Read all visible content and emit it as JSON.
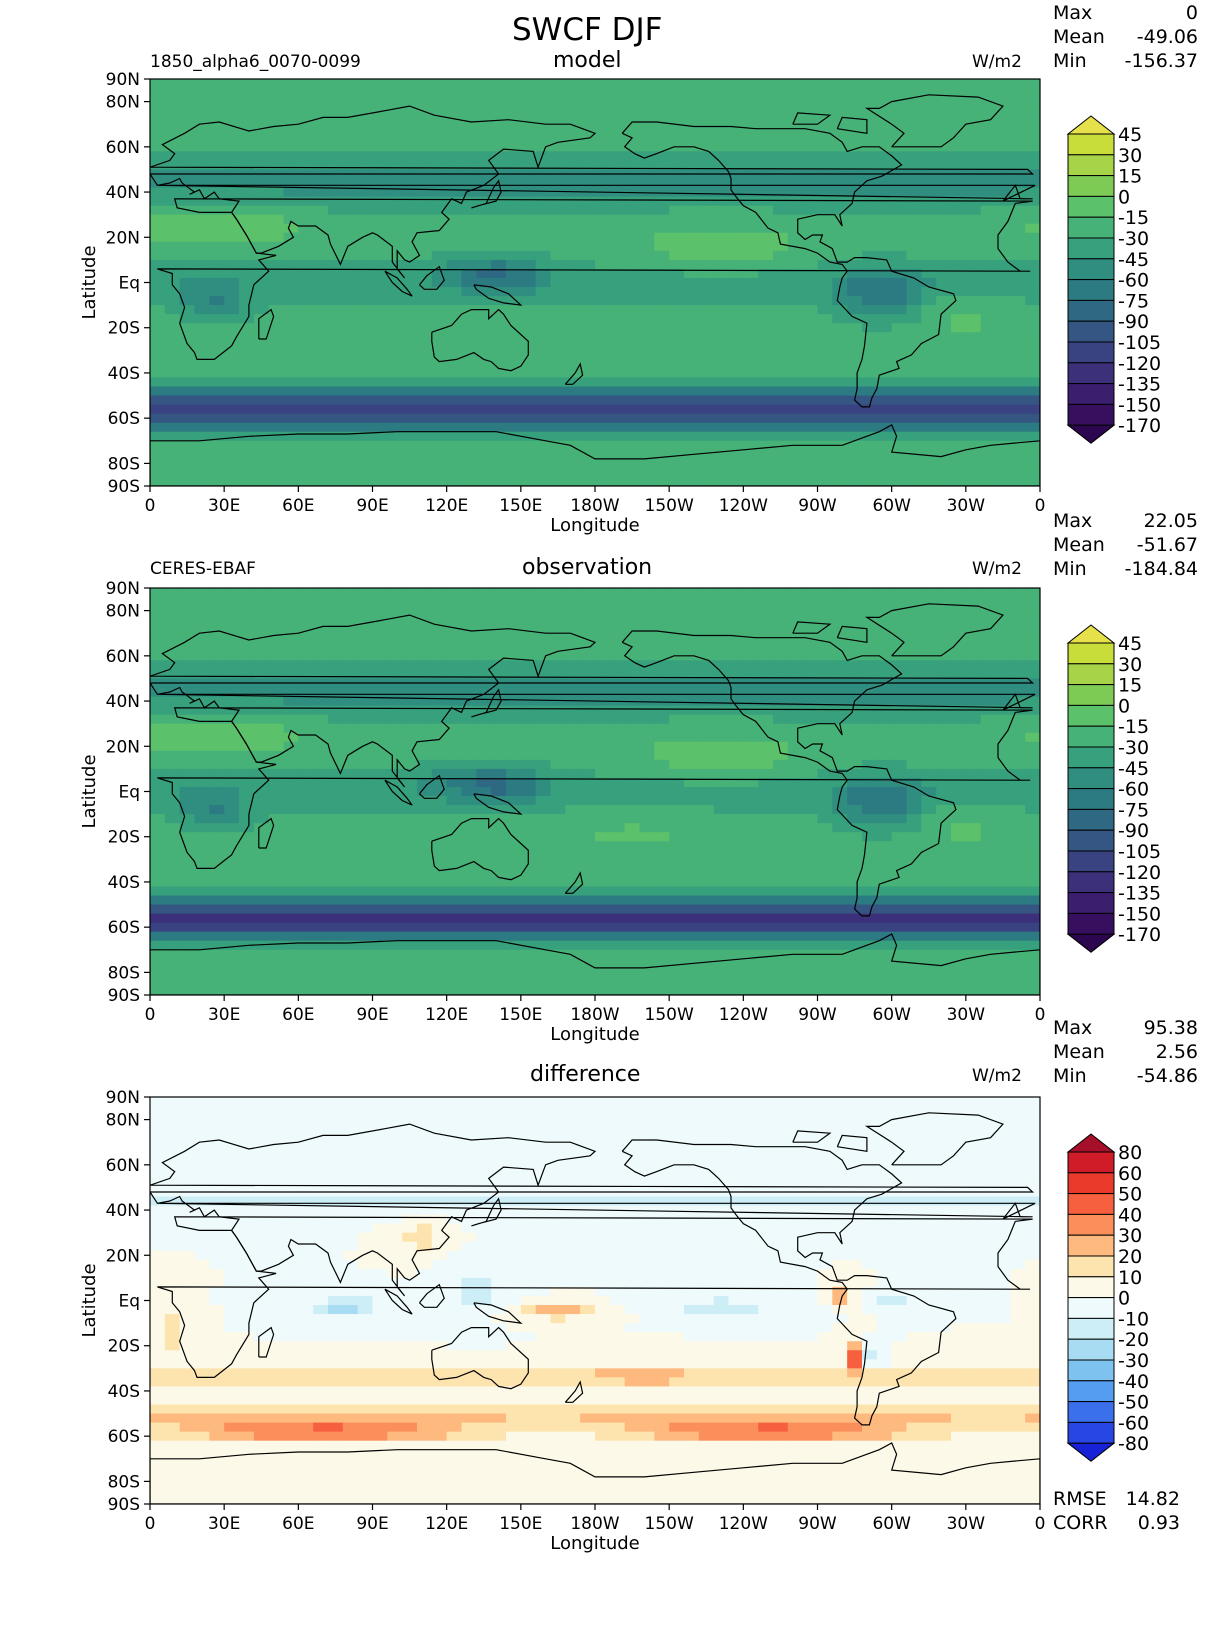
{
  "figure": {
    "title": "SWCF DJF"
  },
  "panels": [
    {
      "id": "model",
      "title": "model",
      "left_label": "1850_alpha6_0070-0099",
      "units": "W/m2",
      "stats": [
        {
          "label": "Max",
          "value": "0"
        },
        {
          "label": "Mean",
          "value": "-49.06"
        },
        {
          "label": "Min",
          "value": "-156.37"
        }
      ],
      "colorbar": {
        "labels": [
          "45",
          "30",
          "15",
          "0",
          "-15",
          "-30",
          "-45",
          "-60",
          "-75",
          "-90",
          "-105",
          "-120",
          "-135",
          "-150",
          "-170"
        ],
        "colors": [
          "#e6e14a",
          "#c9dd3a",
          "#a6d348",
          "#7dca55",
          "#5cc16b",
          "#47b277",
          "#37a07c",
          "#2f8e80",
          "#2d7b82",
          "#2f6883",
          "#355583",
          "#3a4382",
          "#3d307b",
          "#3c1e6f",
          "#36105f",
          "#2d0650"
        ]
      }
    },
    {
      "id": "observation",
      "title": "observation",
      "left_label": "CERES-EBAF",
      "units": "W/m2",
      "stats": [
        {
          "label": "Max",
          "value": "22.05"
        },
        {
          "label": "Mean",
          "value": "-51.67"
        },
        {
          "label": "Min",
          "value": "-184.84"
        }
      ],
      "colorbar": {
        "labels": [
          "45",
          "30",
          "15",
          "0",
          "-15",
          "-30",
          "-45",
          "-60",
          "-75",
          "-90",
          "-105",
          "-120",
          "-135",
          "-150",
          "-170"
        ],
        "colors": [
          "#e6e14a",
          "#c9dd3a",
          "#a6d348",
          "#7dca55",
          "#5cc16b",
          "#47b277",
          "#37a07c",
          "#2f8e80",
          "#2d7b82",
          "#2f6883",
          "#355583",
          "#3a4382",
          "#3d307b",
          "#3c1e6f",
          "#36105f",
          "#2d0650"
        ]
      }
    },
    {
      "id": "difference",
      "title": "difference",
      "left_label": "",
      "units": "W/m2",
      "stats": [
        {
          "label": "Max",
          "value": "95.38"
        },
        {
          "label": "Mean",
          "value": "2.56"
        },
        {
          "label": "Min",
          "value": "-54.86"
        }
      ],
      "bottom_stats": [
        {
          "label": "RMSE",
          "value": "14.82"
        },
        {
          "label": "CORR",
          "value": "0.93"
        }
      ],
      "colorbar": {
        "labels": [
          "80",
          "60",
          "50",
          "40",
          "30",
          "20",
          "10",
          "0",
          "-10",
          "-20",
          "-30",
          "-40",
          "-50",
          "-60",
          "-80"
        ],
        "colors": [
          "#a50f2a",
          "#d01c29",
          "#ea3a2c",
          "#f7603e",
          "#fb8f5b",
          "#fdb97e",
          "#fde4ae",
          "#fdf9e8",
          "#eefafb",
          "#cdeef6",
          "#a8dcf2",
          "#7ec3f0",
          "#559df0",
          "#3a70ec",
          "#2746e3",
          "#1722d6"
        ]
      }
    }
  ],
  "axes": {
    "ylabel": "Latitude",
    "xlabel": "Longitude",
    "yticks": [
      "90N",
      "80N",
      "60N",
      "40N",
      "20N",
      "Eq",
      "20S",
      "40S",
      "60S",
      "80S",
      "90S"
    ],
    "ytick_values": [
      90,
      80,
      60,
      40,
      20,
      0,
      -20,
      -40,
      -60,
      -80,
      -90
    ],
    "xticks": [
      "0",
      "30E",
      "60E",
      "90E",
      "120E",
      "150E",
      "180W",
      "150W",
      "120W",
      "90W",
      "60W",
      "30W",
      "0"
    ],
    "xtick_values": [
      0,
      30,
      60,
      90,
      120,
      150,
      180,
      210,
      240,
      270,
      300,
      330,
      360
    ]
  },
  "chart_data": [
    {
      "type": "heatmap",
      "title": "model",
      "subtitle": "1850_alpha6_0070-0099",
      "units": "W/m2",
      "xlabel": "Longitude",
      "ylabel": "Latitude",
      "xlim": [
        0,
        360
      ],
      "ylim": [
        -90,
        90
      ],
      "stats": {
        "max": 0,
        "mean": -49.06,
        "min": -156.37
      },
      "levels": [
        -170,
        -150,
        -135,
        -120,
        -105,
        -90,
        -75,
        -60,
        -45,
        -30,
        -15,
        0,
        15,
        30,
        45
      ]
    },
    {
      "type": "heatmap",
      "title": "observation",
      "subtitle": "CERES-EBAF",
      "units": "W/m2",
      "xlabel": "Longitude",
      "ylabel": "Latitude",
      "xlim": [
        0,
        360
      ],
      "ylim": [
        -90,
        90
      ],
      "stats": {
        "max": 22.05,
        "mean": -51.67,
        "min": -184.84
      },
      "levels": [
        -170,
        -150,
        -135,
        -120,
        -105,
        -90,
        -75,
        -60,
        -45,
        -30,
        -15,
        0,
        15,
        30,
        45
      ]
    },
    {
      "type": "heatmap",
      "title": "difference",
      "units": "W/m2",
      "xlabel": "Longitude",
      "ylabel": "Latitude",
      "xlim": [
        0,
        360
      ],
      "ylim": [
        -90,
        90
      ],
      "stats": {
        "max": 95.38,
        "mean": 2.56,
        "min": -54.86,
        "rmse": 14.82,
        "corr": 0.93
      },
      "levels": [
        -80,
        -60,
        -50,
        -40,
        -30,
        -20,
        -10,
        0,
        10,
        20,
        30,
        40,
        50,
        60,
        80
      ]
    }
  ]
}
